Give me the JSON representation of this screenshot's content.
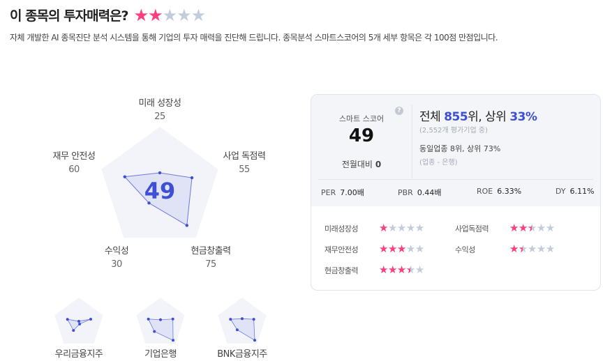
{
  "header": {
    "title": "이 종목의 투자매력은?",
    "rating": 2,
    "description": "자체 개발한 AI 종목진단 분석 시스템을 통해 기업의 투자 매력을 진단해 드립니다. 종목분석 스마트스코어의 5개 세부 항목은 각 100점 만점입니다."
  },
  "radar": {
    "score": "49",
    "axes": [
      {
        "label": "미래 성장성",
        "value": 25
      },
      {
        "label": "사업 독점력",
        "value": 55
      },
      {
        "label": "현금창출력",
        "value": 75
      },
      {
        "label": "수익성",
        "value": 30
      },
      {
        "label": "재무 안전성",
        "value": 60
      }
    ]
  },
  "peers": [
    {
      "name": "우리금융지주",
      "values": [
        7,
        49,
        5,
        36,
        47
      ]
    },
    {
      "name": "기업은행",
      "values": [
        13,
        51,
        84,
        41,
        50
      ]
    },
    {
      "name": "BNK금융지주",
      "values": [
        17,
        48,
        84,
        33,
        48
      ]
    }
  ],
  "card": {
    "score_label": "스마트 스코어",
    "score": "49",
    "help_icon": "question-circle-icon",
    "change_label": "전월대비",
    "change_value": "0",
    "rank_prefix": "전체 ",
    "rank": "855",
    "rank_mid": "위, 상위 ",
    "rank_pct": "33%",
    "rank_sub": "(2,552개 평가기업 중)",
    "industry_rank": "동일업종 8위, 상위 73%",
    "industry_sub": "(업종 - 은행)",
    "metrics": [
      {
        "label": "PER",
        "value": "7.00배"
      },
      {
        "label": "PBR",
        "value": "0.44배"
      },
      {
        "label": "ROE",
        "value": "6.33%"
      },
      {
        "label": "DY",
        "value": "6.11%"
      }
    ],
    "ratings": [
      {
        "label": "미래성장성",
        "stars": 1
      },
      {
        "label": "사업독점력",
        "stars": 2.5
      },
      {
        "label": "재무안전성",
        "stars": 3
      },
      {
        "label": "수익성",
        "stars": 1.5
      },
      {
        "label": "현금창출력",
        "stars": 3.5
      }
    ]
  },
  "colors": {
    "accent": "#3d4fd6",
    "star_on": "#ff3d7f",
    "star_off": "#c3ccdb",
    "pentagon": "#f3f4f9"
  }
}
